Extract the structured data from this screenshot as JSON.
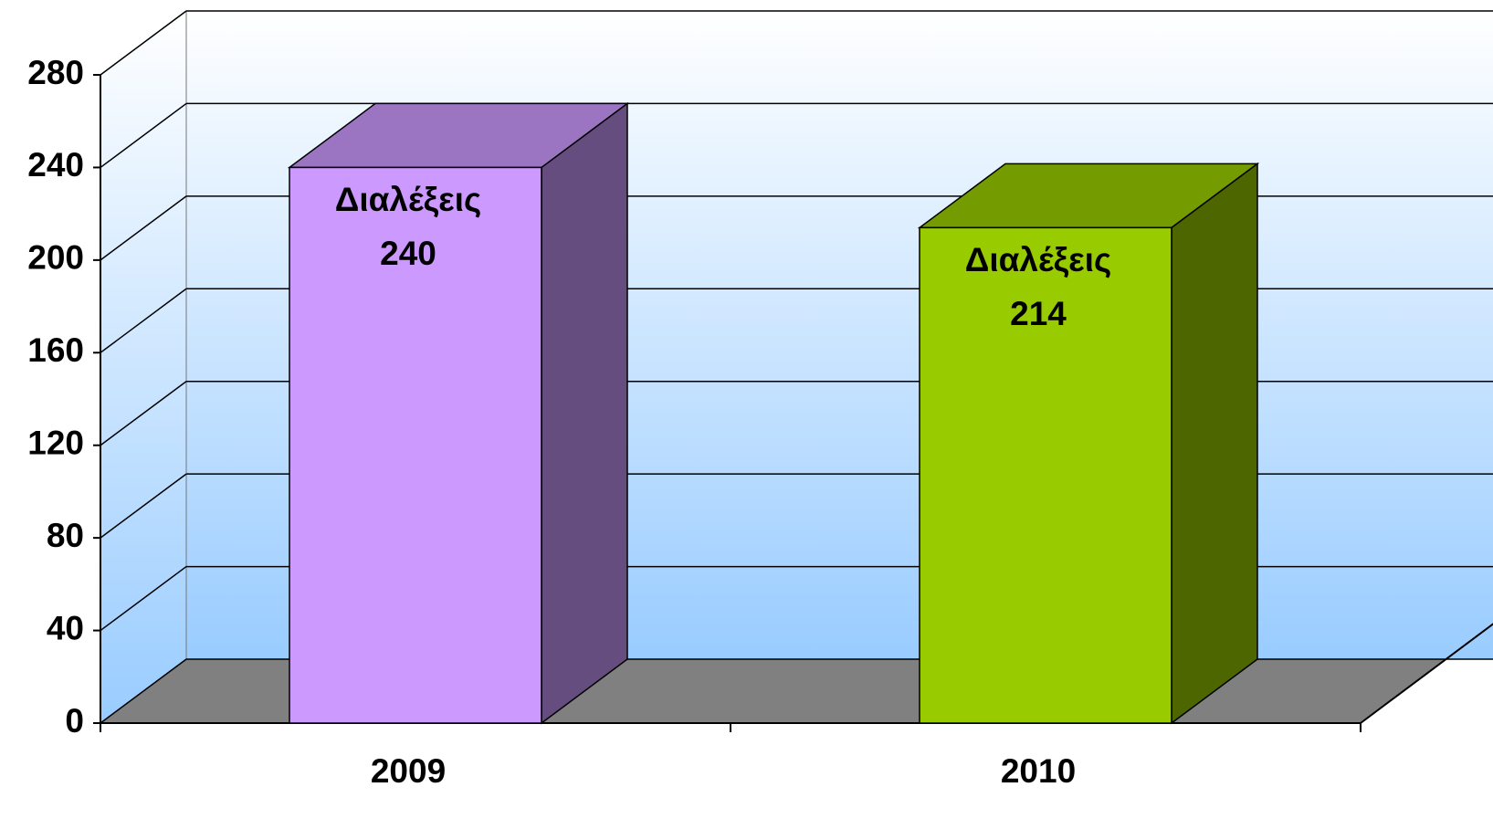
{
  "chart_data": {
    "type": "bar3d",
    "categories": [
      "2009",
      "2010"
    ],
    "series": [
      {
        "name": "Διαλέξεις",
        "values": [
          240,
          214
        ]
      }
    ],
    "colors": [
      "#cc99ff",
      "#99cc00"
    ],
    "ylim": [
      0,
      280
    ],
    "yticks": [
      0,
      40,
      80,
      120,
      160,
      200,
      240,
      280
    ],
    "grid": true
  }
}
